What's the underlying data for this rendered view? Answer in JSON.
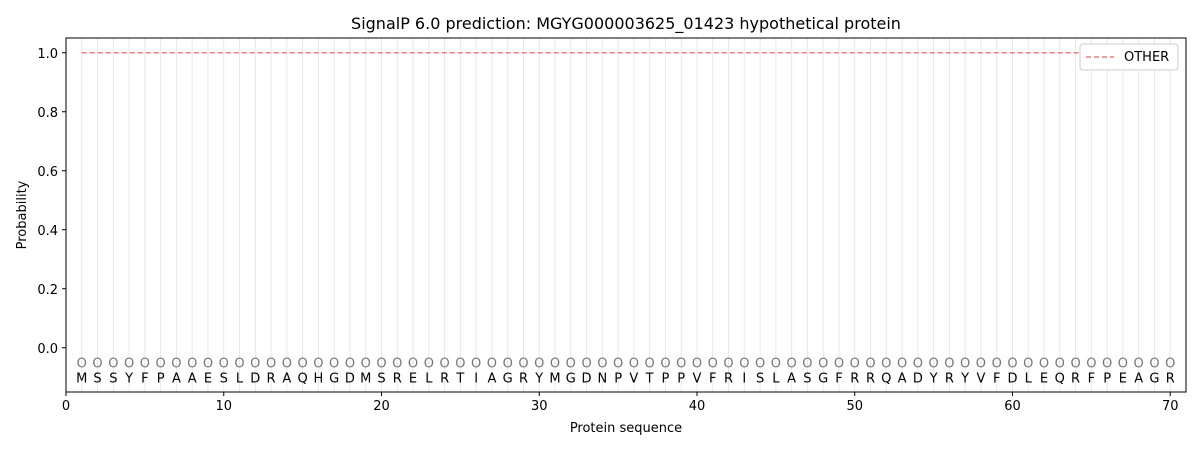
{
  "chart_data": {
    "type": "line",
    "title": "SignalP 6.0 prediction: MGYG000003625_01423 hypothetical protein",
    "xlabel": "Protein sequence",
    "ylabel": "Probability",
    "xlim": [
      0,
      71
    ],
    "ylim": [
      -0.15,
      1.05
    ],
    "xticks": [
      0,
      10,
      20,
      30,
      40,
      50,
      60,
      70
    ],
    "yticks": [
      0.0,
      0.2,
      0.4,
      0.6,
      0.8,
      1.0
    ],
    "ytick_labels": [
      "0.0",
      "0.2",
      "0.4",
      "0.6",
      "0.8",
      "1.0"
    ],
    "grid": "vertical lines at each residue",
    "legend_position": "top-right",
    "sequence": [
      "M",
      "S",
      "S",
      "Y",
      "F",
      "P",
      "A",
      "A",
      "E",
      "S",
      "L",
      "D",
      "R",
      "A",
      "Q",
      "H",
      "G",
      "D",
      "M",
      "S",
      "R",
      "E",
      "L",
      "R",
      "T",
      "I",
      "A",
      "G",
      "R",
      "Y",
      "M",
      "G",
      "D",
      "N",
      "P",
      "V",
      "T",
      "P",
      "P",
      "V",
      "F",
      "R",
      "I",
      "S",
      "L",
      "A",
      "S",
      "G",
      "F",
      "R",
      "R",
      "Q",
      "A",
      "D",
      "Y",
      "R",
      "Y",
      "V",
      "F",
      "D",
      "L",
      "E",
      "Q",
      "R",
      "F",
      "P",
      "E",
      "A",
      "G",
      "R"
    ],
    "region_label": "O",
    "series": [
      {
        "name": "OTHER",
        "color": "#f08080",
        "style": "dashed",
        "x_range": [
          1,
          70
        ],
        "value": 1.0
      }
    ]
  }
}
